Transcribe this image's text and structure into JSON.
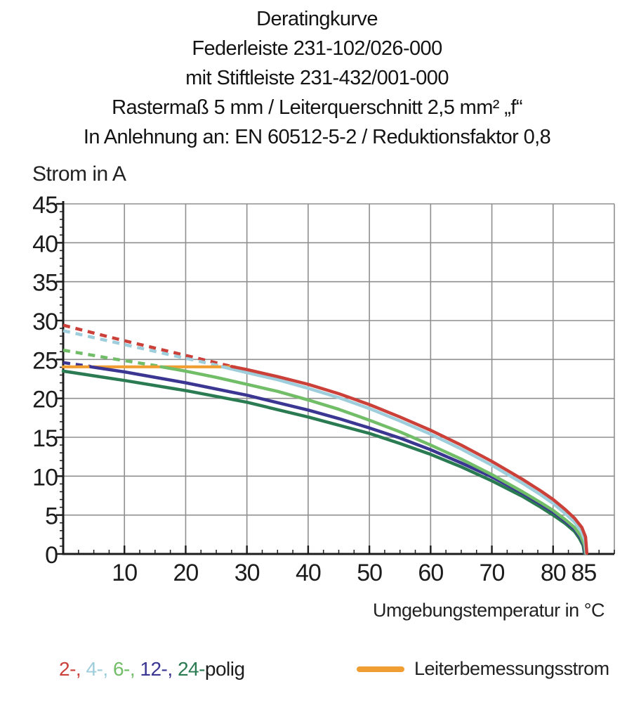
{
  "title": {
    "lines": [
      "Deratingkurve",
      "Federleiste 231-102/026-000",
      "mit Stiftleiste 231-432/001-000",
      "Rastermaß 5 mm / Leiterquerschnitt 2,5 mm² „f“",
      "In Anlehnung an: EN 60512-5-2 / Reduktionsfaktor 0,8"
    ]
  },
  "chart_data": {
    "type": "line",
    "title": "Deratingkurve",
    "xlabel": "Umgebungstemperatur in °C",
    "ylabel": "Strom in A",
    "xlim": [
      0,
      90
    ],
    "ylim": [
      0,
      45
    ],
    "x_major_ticks": [
      10,
      20,
      30,
      40,
      50,
      60,
      70,
      80,
      85
    ],
    "y_major_ticks": [
      0,
      5,
      10,
      15,
      20,
      25,
      30,
      35,
      40,
      45
    ],
    "x_minor_step": 2.5,
    "y_minor_step": 1,
    "grid": {
      "x": [
        10,
        20,
        30,
        40,
        50,
        60,
        70,
        80,
        90
      ],
      "y": [
        5,
        10,
        15,
        20,
        25,
        30,
        35,
        40,
        45
      ]
    },
    "grid_on": true,
    "grid_color": "#8f8f8f",
    "axis_color": "#1c1c1c",
    "legend_position": "bottom",
    "series": [
      {
        "name": "2-polig-unlimited",
        "pole_count": 2,
        "style": "dashed",
        "color": "#cb4038",
        "points": [
          [
            0,
            29.4
          ],
          [
            9,
            27.6
          ],
          [
            18,
            25.9
          ],
          [
            27.5,
            24.1
          ]
        ]
      },
      {
        "name": "4-polig-unlimited",
        "pole_count": 4,
        "style": "dashed",
        "color": "#9ecddb",
        "points": [
          [
            0,
            28.7
          ],
          [
            9,
            27.1
          ],
          [
            18,
            25.5
          ],
          [
            26,
            24.1
          ]
        ]
      },
      {
        "name": "6-polig-unlimited",
        "pole_count": 6,
        "style": "dashed",
        "color": "#72bd68",
        "points": [
          [
            0,
            26.2
          ],
          [
            8,
            25.1
          ],
          [
            16,
            24.1
          ]
        ]
      },
      {
        "name": "12-polig-unlimited",
        "pole_count": 12,
        "style": "dashed",
        "color": "#3a3692",
        "points": [
          [
            0,
            24.6
          ],
          [
            4.5,
            24.1
          ]
        ]
      },
      {
        "name": "Leiterbemessungsstrom",
        "style": "solid",
        "color": "#f09e32",
        "width": 4.2,
        "points": [
          [
            0,
            24.05
          ],
          [
            28,
            24.05
          ]
        ]
      },
      {
        "name": "24-polig",
        "pole_count": 24,
        "style": "solid",
        "color": "#2b7b52",
        "points": [
          [
            0,
            23.5
          ],
          [
            10,
            22.3
          ],
          [
            20,
            21.0
          ],
          [
            30,
            19.5
          ],
          [
            40,
            17.6
          ],
          [
            50,
            15.5
          ],
          [
            55,
            14.2
          ],
          [
            60,
            12.8
          ],
          [
            65,
            11.2
          ],
          [
            70,
            9.4
          ],
          [
            75,
            7.4
          ],
          [
            78,
            6.0
          ],
          [
            80,
            5.0
          ],
          [
            82,
            3.9
          ],
          [
            83.5,
            2.9
          ],
          [
            84.3,
            2.0
          ],
          [
            84.9,
            1.1
          ],
          [
            85.1,
            0.1
          ]
        ]
      },
      {
        "name": "12-polig",
        "pole_count": 12,
        "style": "solid",
        "color": "#3a3692",
        "points": [
          [
            4.5,
            24.05
          ],
          [
            10,
            23.4
          ],
          [
            20,
            22.0
          ],
          [
            30,
            20.4
          ],
          [
            40,
            18.5
          ],
          [
            45,
            17.4
          ],
          [
            50,
            16.2
          ],
          [
            55,
            14.9
          ],
          [
            60,
            13.4
          ],
          [
            65,
            11.7
          ],
          [
            70,
            9.9
          ],
          [
            75,
            7.8
          ],
          [
            78,
            6.4
          ],
          [
            80,
            5.4
          ],
          [
            82,
            4.2
          ],
          [
            83.5,
            3.2
          ],
          [
            84.4,
            2.2
          ],
          [
            85,
            1.2
          ],
          [
            85.2,
            0.1
          ]
        ]
      },
      {
        "name": "6-polig",
        "pole_count": 6,
        "style": "solid",
        "color": "#72bd68",
        "points": [
          [
            16,
            24.05
          ],
          [
            20,
            23.5
          ],
          [
            25,
            22.7
          ],
          [
            30,
            21.8
          ],
          [
            35,
            20.9
          ],
          [
            40,
            19.8
          ],
          [
            45,
            18.6
          ],
          [
            50,
            17.2
          ],
          [
            55,
            15.7
          ],
          [
            60,
            14.0
          ],
          [
            65,
            12.2
          ],
          [
            70,
            10.2
          ],
          [
            75,
            8.0
          ],
          [
            78,
            6.6
          ],
          [
            80,
            5.6
          ],
          [
            82,
            4.4
          ],
          [
            83.5,
            3.4
          ],
          [
            84.5,
            2.3
          ],
          [
            85.1,
            1.2
          ],
          [
            85.3,
            0.1
          ]
        ]
      },
      {
        "name": "4-polig",
        "pole_count": 4,
        "style": "solid",
        "color": "#9ecddb",
        "points": [
          [
            26,
            24.05
          ],
          [
            30,
            23.3
          ],
          [
            35,
            22.4
          ],
          [
            40,
            21.3
          ],
          [
            45,
            20.1
          ],
          [
            50,
            18.7
          ],
          [
            55,
            17.1
          ],
          [
            60,
            15.4
          ],
          [
            65,
            13.5
          ],
          [
            70,
            11.4
          ],
          [
            75,
            9.1
          ],
          [
            78,
            7.6
          ],
          [
            80,
            6.5
          ],
          [
            82,
            5.2
          ],
          [
            83.5,
            4.1
          ],
          [
            84.6,
            2.9
          ],
          [
            85.2,
            1.7
          ],
          [
            85.4,
            0.1
          ]
        ]
      },
      {
        "name": "2-polig",
        "pole_count": 2,
        "style": "solid",
        "color": "#cb4038",
        "points": [
          [
            27.5,
            24.1
          ],
          [
            30,
            23.7
          ],
          [
            35,
            22.8
          ],
          [
            40,
            21.8
          ],
          [
            45,
            20.6
          ],
          [
            50,
            19.2
          ],
          [
            55,
            17.6
          ],
          [
            60,
            15.9
          ],
          [
            65,
            14.0
          ],
          [
            70,
            11.9
          ],
          [
            75,
            9.6
          ],
          [
            78,
            8.1
          ],
          [
            80,
            7.0
          ],
          [
            82,
            5.7
          ],
          [
            83.5,
            4.6
          ],
          [
            84.7,
            3.4
          ],
          [
            85.3,
            2.2
          ],
          [
            85.5,
            0.1
          ]
        ]
      }
    ]
  },
  "legend": {
    "poles": [
      {
        "label": "2-,",
        "color": "#cb4038"
      },
      {
        "label": "4-,",
        "color": "#9ecddb"
      },
      {
        "label": "6-,",
        "color": "#72bd68"
      },
      {
        "label": "12-,",
        "color": "#3a3692"
      },
      {
        "label": "24-",
        "color": "#2b7b52"
      }
    ],
    "suffix": "polig",
    "suffix_color": "#1c1c1c",
    "rated": {
      "label": "Leiterbemessungsstrom",
      "color": "#f09e32"
    }
  }
}
